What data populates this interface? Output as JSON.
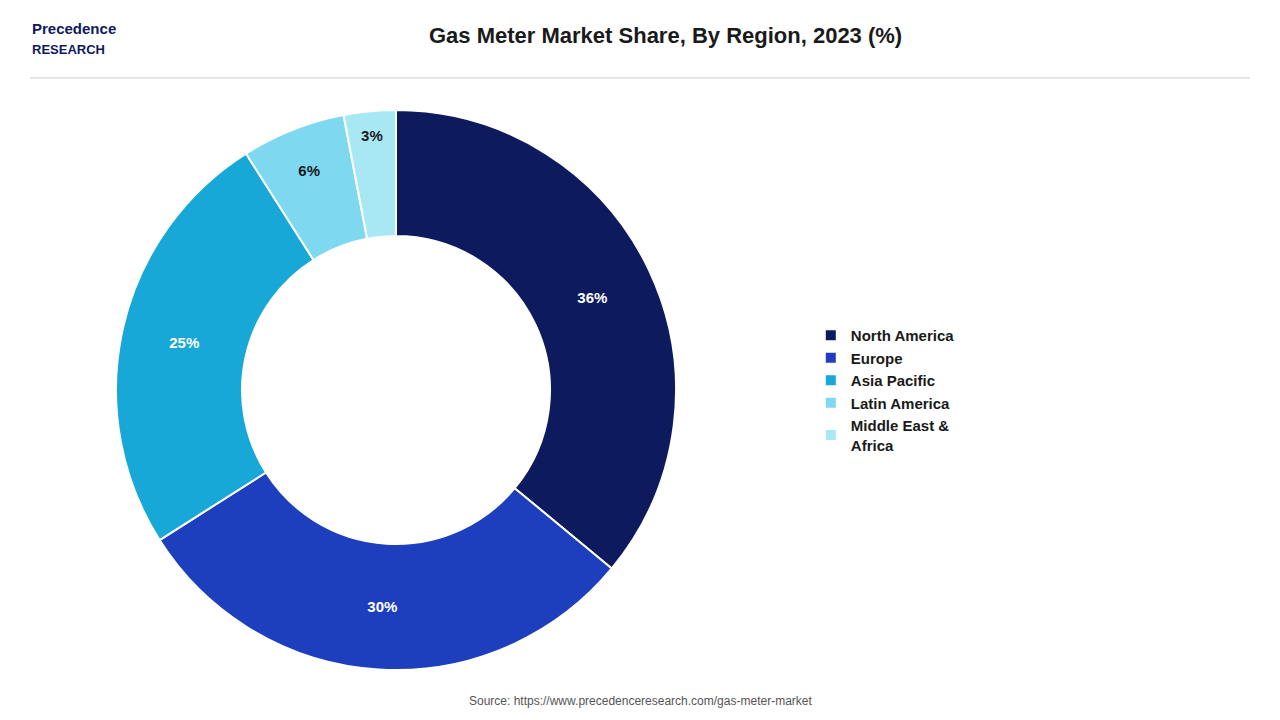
{
  "chart_data": {
    "type": "pie",
    "title": "Gas Meter Market Share, By Region, 2023 (%)",
    "categories": [
      "North America",
      "Europe",
      "Asia Pacific",
      "Latin America",
      "Middle East &\nAfrica"
    ],
    "values": [
      36,
      30,
      25,
      6,
      3
    ],
    "value_labels": [
      "36%",
      "30%",
      "25%",
      "6%",
      "3%"
    ],
    "colors": [
      "#0d1b5e",
      "#1e3fbd",
      "#18a8d8",
      "#7dd8f0",
      "#a8e8f5"
    ],
    "data_labels": true,
    "legend": "right",
    "annotations": [
      "Precedence",
      "RESEARCH",
      "Source: https://www.precedenceresearch.com/gas-meter-market"
    ]
  }
}
